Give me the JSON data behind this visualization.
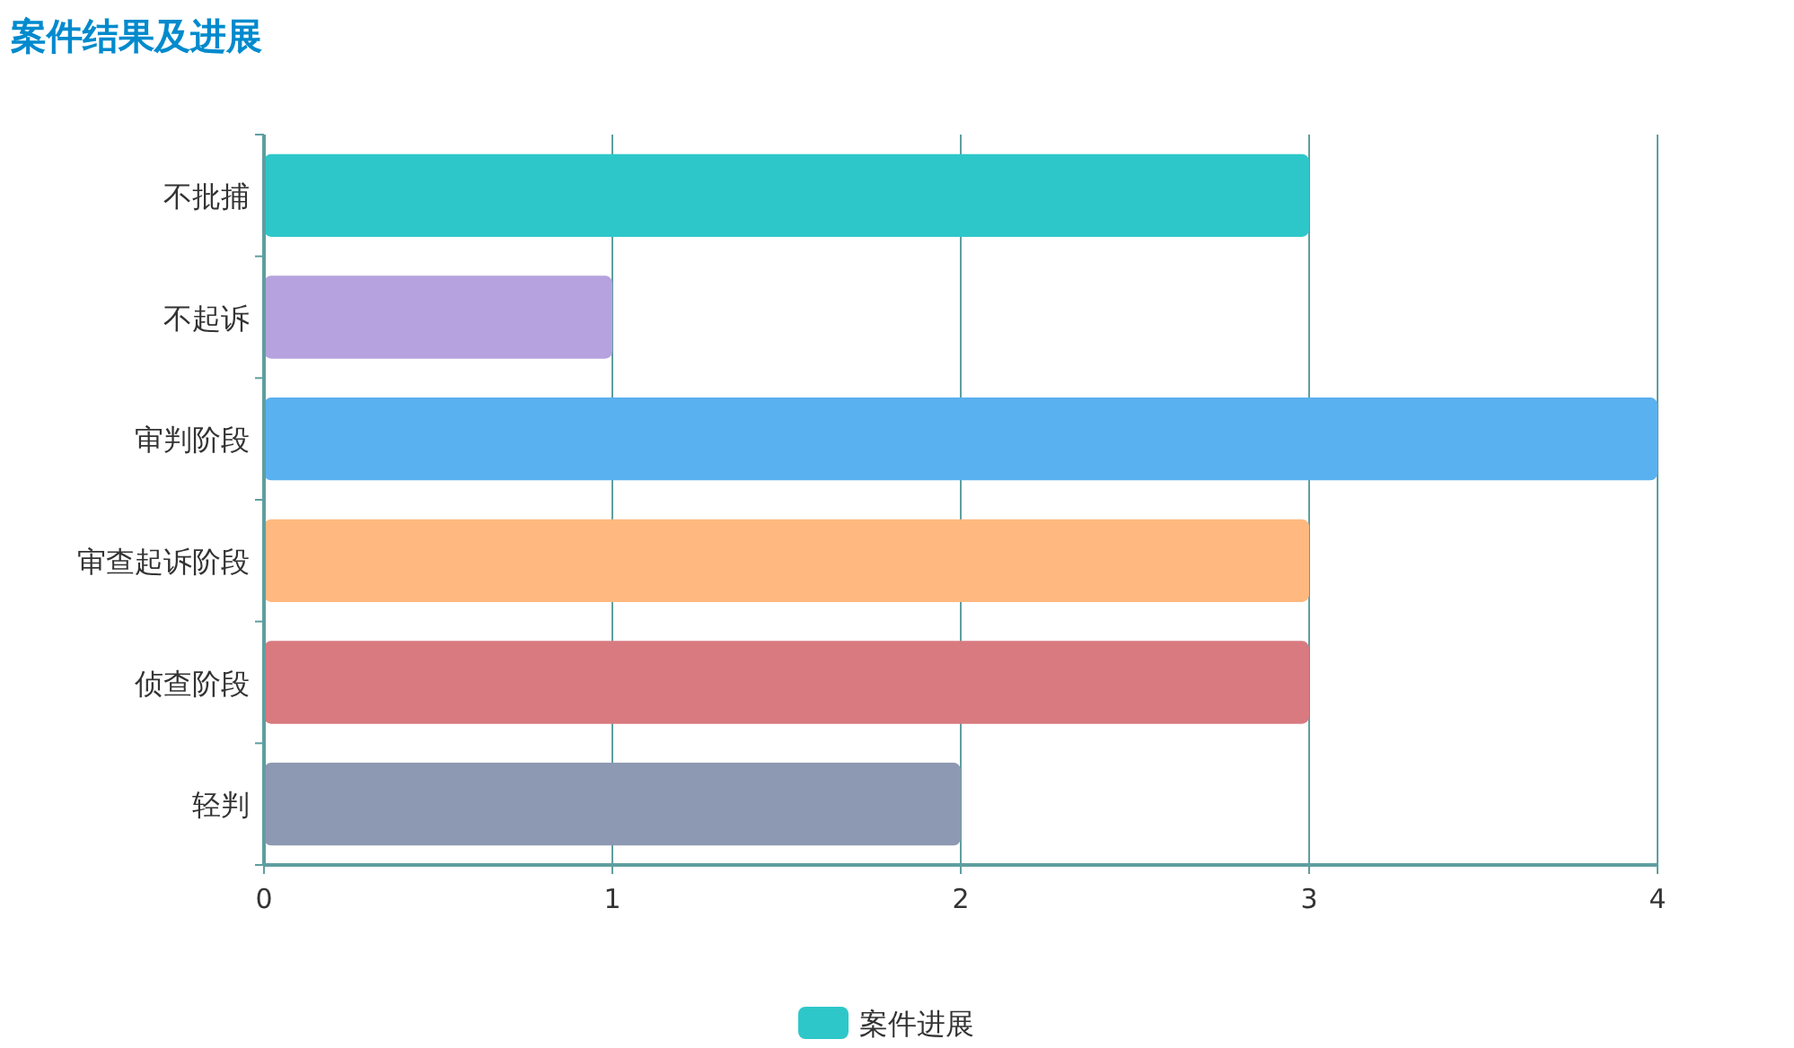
{
  "chart_data": {
    "type": "bar",
    "orientation": "horizontal",
    "title": "案件结果及进展",
    "categories": [
      "不批捕",
      "不起诉",
      "审判阶段",
      "审查起诉阶段",
      "侦查阶段",
      "轻判"
    ],
    "series": [
      {
        "name": "案件进展",
        "colors": [
          "#2ec7c9",
          "#b6a2de",
          "#5ab1ef",
          "#ffb980",
          "#d87a80",
          "#8d98b3"
        ],
        "values": [
          3,
          1,
          4,
          3,
          3,
          2
        ]
      }
    ],
    "xlim": [
      0,
      4
    ],
    "xticks": [
      0,
      1,
      2,
      3,
      4
    ],
    "grid": "x",
    "legend": "bottom"
  }
}
